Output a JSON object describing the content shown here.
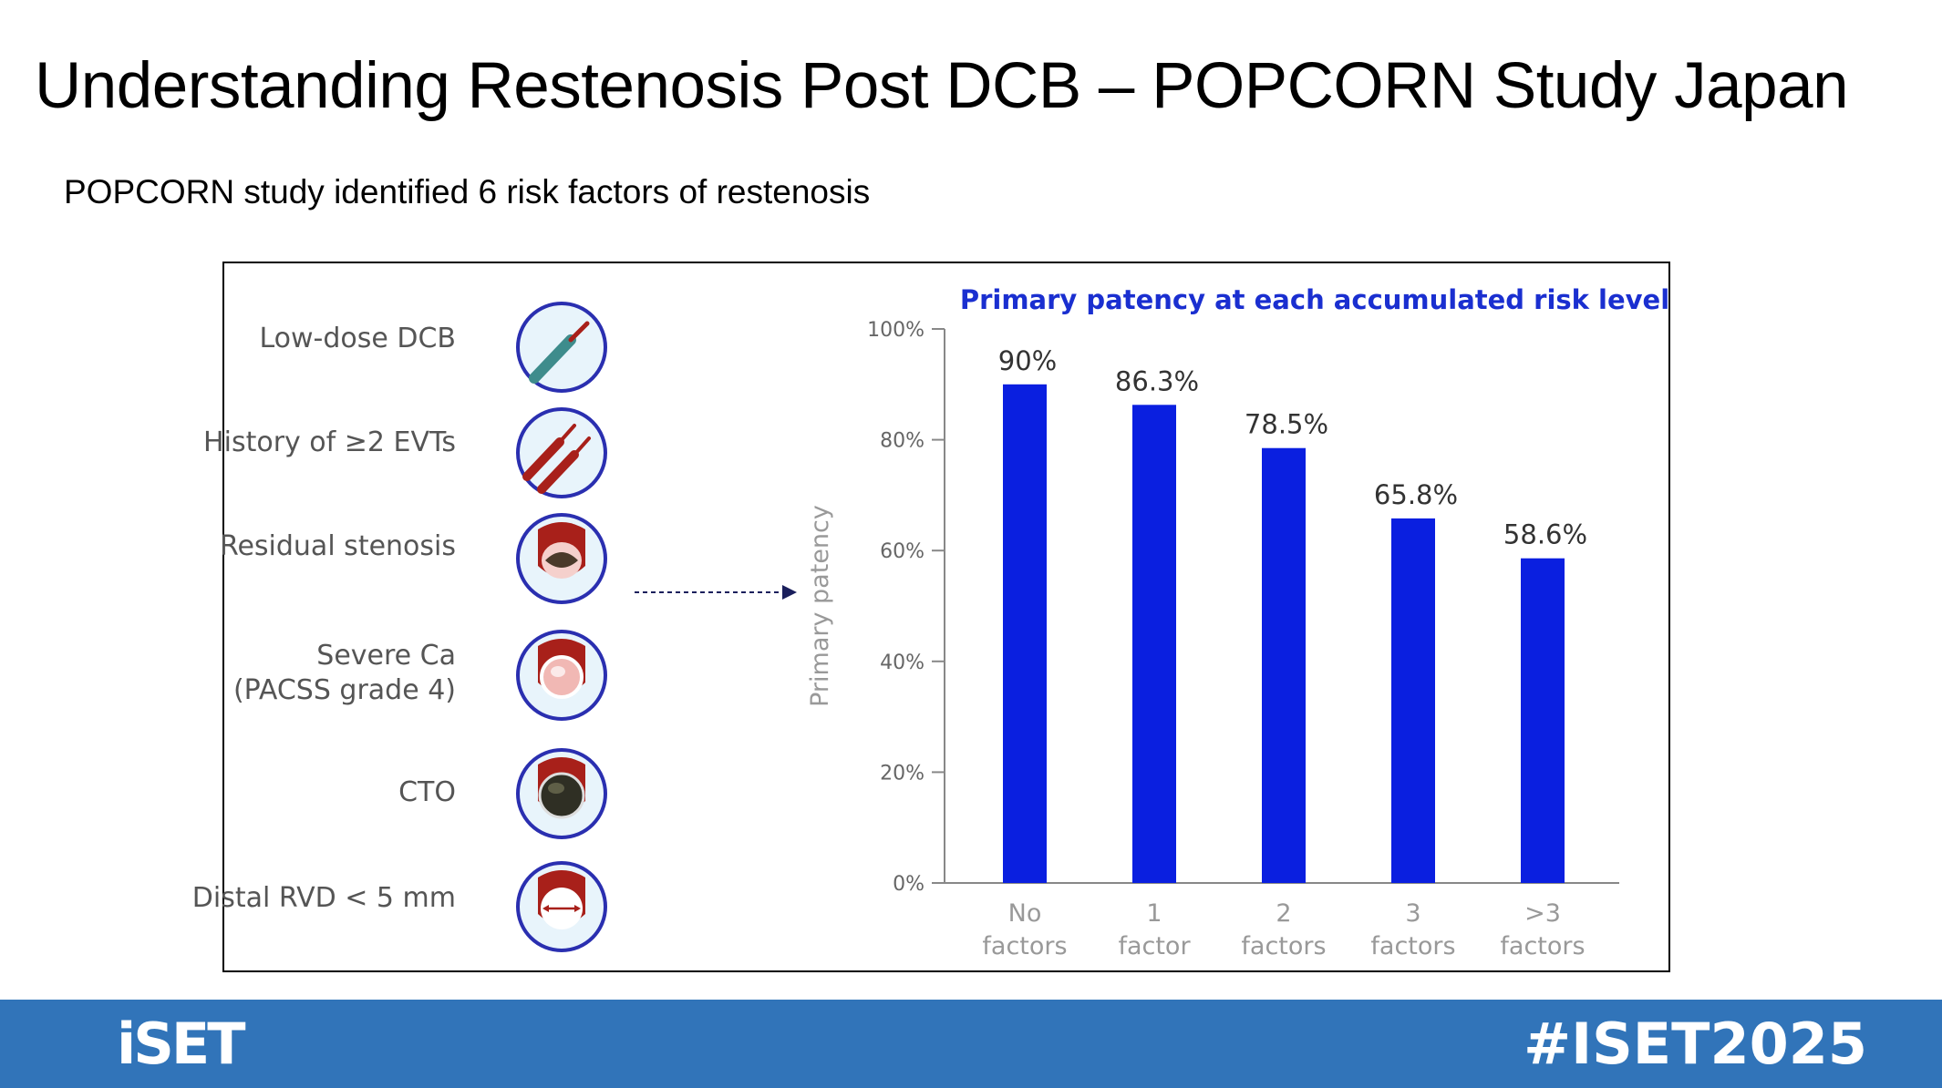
{
  "slide": {
    "title": "Understanding Restenosis Post DCB – POPCORN Study Japan",
    "subtitle": "POPCORN study identified 6 risk factors of restenosis"
  },
  "risk_factors": [
    {
      "label": "Low-dose DCB",
      "icon": "single-balloon-catheter-icon"
    },
    {
      "label": "History of ≥2 EVTs",
      "icon": "double-balloon-catheter-icon"
    },
    {
      "label": "Residual stenosis",
      "icon": "residual-stenosis-vessel-icon"
    },
    {
      "label": "Severe Ca\n(PACSS grade 4)",
      "icon": "calcified-vessel-icon"
    },
    {
      "label": "CTO",
      "icon": "occluded-vessel-icon"
    },
    {
      "label": "Distal RVD < 5 mm",
      "icon": "small-vessel-diameter-icon"
    }
  ],
  "chart_data": {
    "type": "bar",
    "title": "Primary patency at each accumulated risk level",
    "ylabel": "Primary patency",
    "xlabel": "",
    "ylim": [
      0,
      100
    ],
    "yticks": [
      "0%",
      "20%",
      "40%",
      "60%",
      "80%",
      "100%"
    ],
    "categories": [
      "No\nfactors",
      "1\nfactor",
      "2\nfactors",
      "3\nfactors",
      ">3\nfactors"
    ],
    "values": [
      90,
      86.3,
      78.5,
      65.8,
      58.6
    ],
    "data_labels": [
      "90%",
      "86.3%",
      "78.5%",
      "65.8%",
      "58.6%"
    ],
    "bar_color": "#0a1fe0",
    "title_color": "#1a2fd0"
  },
  "footer": {
    "logo": "iSET",
    "hashtag": "#ISET2025",
    "background": "#3174b9"
  }
}
